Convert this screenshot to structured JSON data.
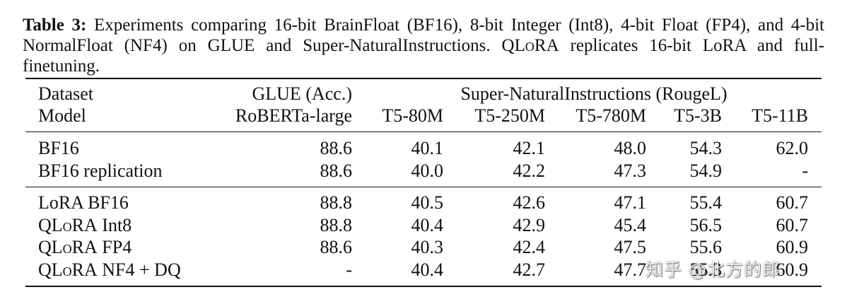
{
  "caption": {
    "label": "Table 3:",
    "text_before": " Experiments comparing 16-bit BrainFloat (BF16), 8-bit Integer (Int8), 4-bit Float (FP4), and 4-bit NormalFloat (NF4) on GLUE and Super-NaturalInstructions. Q",
    "lora_sc": "LoRA",
    "text_after": " replicates 16-bit LoRA and full-finetuning."
  },
  "header": {
    "row1": {
      "dataset": "Dataset",
      "glue": "GLUE (Acc.)",
      "sni": "Super-NaturalInstructions (RougeL)"
    },
    "row2": {
      "model": "Model",
      "roberta": "RoBERTa-large",
      "t5_80m": "T5-80M",
      "t5_250m": "T5-250M",
      "t5_780m": "T5-780M",
      "t5_3b": "T5-3B",
      "t5_11b": "T5-11B"
    }
  },
  "rows": [
    {
      "model": "BF16",
      "glue": "88.6",
      "t5_80m": "40.1",
      "t5_250m": "42.1",
      "t5_780m": "48.0",
      "t5_3b": "54.3",
      "t5_11b": "62.0"
    },
    {
      "model": "BF16 replication",
      "glue": "88.6",
      "t5_80m": "40.0",
      "t5_250m": "42.2",
      "t5_780m": "47.3",
      "t5_3b": "54.9",
      "t5_11b": "-"
    },
    {
      "model": "LoRA BF16",
      "glue": "88.8",
      "t5_80m": "40.5",
      "t5_250m": "42.6",
      "t5_780m": "47.1",
      "t5_3b": "55.4",
      "t5_11b": "60.7"
    },
    {
      "model_prefix": "Q",
      "model_sc": "LoRA",
      "model_suffix": " Int8",
      "glue": "88.8",
      "t5_80m": "40.4",
      "t5_250m": "42.9",
      "t5_780m": "45.4",
      "t5_3b": "56.5",
      "t5_11b": "60.7"
    },
    {
      "model_prefix": "Q",
      "model_sc": "LoRA",
      "model_suffix": " FP4",
      "glue": "88.6",
      "t5_80m": "40.3",
      "t5_250m": "42.4",
      "t5_780m": "47.5",
      "t5_3b": "55.6",
      "t5_11b": "60.9"
    },
    {
      "model_prefix": "Q",
      "model_sc": "LoRA",
      "model_suffix": " NF4 + DQ",
      "glue": "-",
      "t5_80m": "40.4",
      "t5_250m": "42.7",
      "t5_780m": "47.7",
      "t5_3b": "55.3",
      "t5_11b": "60.9"
    }
  ],
  "watermark": "知乎 @北方的郎"
}
